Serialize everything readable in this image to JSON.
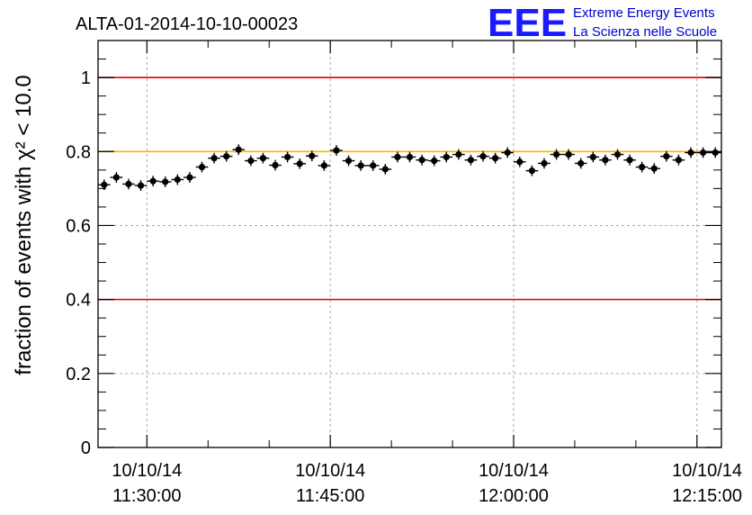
{
  "header": {
    "title": "ALTA-01-2014-10-10-00023",
    "logo_text": "EEE",
    "logo_line1": "Extreme Energy Events",
    "logo_line2": "La Scienza nelle Scuole",
    "logo_color": "#1a1aff"
  },
  "chart_data": {
    "type": "scatter",
    "title": "ALTA-01-2014-10-10-00023",
    "ylabel": "fraction of events with χ² < 10.0",
    "xlabel": "",
    "x_axis_type": "datetime",
    "xlim": [
      "2014-10-10 11:26:00",
      "2014-10-10 12:17:00"
    ],
    "ylim": [
      0,
      1.1
    ],
    "grid": true,
    "y_ticks": [
      "0",
      "0.2",
      "0.4",
      "0.6",
      "0.8",
      "1"
    ],
    "x_ticks": [
      {
        "date": "10/10/14",
        "time": "11:30:00"
      },
      {
        "date": "10/10/14",
        "time": "11:45:00"
      },
      {
        "date": "10/10/14",
        "time": "12:00:00"
      },
      {
        "date": "10/10/14",
        "time": "12:15:00"
      }
    ],
    "reference_lines": [
      {
        "y": 1.0,
        "color": "#e00000"
      },
      {
        "y": 0.8,
        "color": "#ffb400"
      },
      {
        "y": 0.4,
        "color": "#e00000"
      }
    ],
    "series": [
      {
        "marker_color": "#000000",
        "x": [
          "11:26:30",
          "11:27:30",
          "11:28:30",
          "11:29:30",
          "11:30:30",
          "11:31:30",
          "11:32:30",
          "11:33:30",
          "11:34:30",
          "11:35:30",
          "11:36:30",
          "11:37:30",
          "11:38:30",
          "11:39:30",
          "11:40:30",
          "11:41:30",
          "11:42:30",
          "11:43:30",
          "11:44:30",
          "11:45:30",
          "11:46:30",
          "11:47:30",
          "11:48:30",
          "11:49:30",
          "11:50:30",
          "11:51:30",
          "11:52:30",
          "11:53:30",
          "11:54:30",
          "11:55:30",
          "11:56:30",
          "11:57:30",
          "11:58:30",
          "11:59:30",
          "12:00:30",
          "12:01:30",
          "12:02:30",
          "12:03:30",
          "12:04:30",
          "12:05:30",
          "12:06:30",
          "12:07:30",
          "12:08:30",
          "12:09:30",
          "12:10:30",
          "12:11:30",
          "12:12:30",
          "12:13:30",
          "12:14:30",
          "12:15:30",
          "12:16:30"
        ],
        "y": [
          0.71,
          0.73,
          0.712,
          0.708,
          0.72,
          0.718,
          0.724,
          0.73,
          0.758,
          0.782,
          0.787,
          0.805,
          0.775,
          0.782,
          0.763,
          0.785,
          0.767,
          0.788,
          0.762,
          0.803,
          0.775,
          0.762,
          0.762,
          0.752,
          0.785,
          0.785,
          0.777,
          0.775,
          0.785,
          0.792,
          0.777,
          0.787,
          0.782,
          0.797,
          0.772,
          0.748,
          0.768,
          0.792,
          0.792,
          0.768,
          0.785,
          0.777,
          0.792,
          0.777,
          0.758,
          0.754,
          0.787,
          0.777,
          0.797,
          0.797,
          0.797
        ],
        "y_err": 0.007
      }
    ]
  }
}
